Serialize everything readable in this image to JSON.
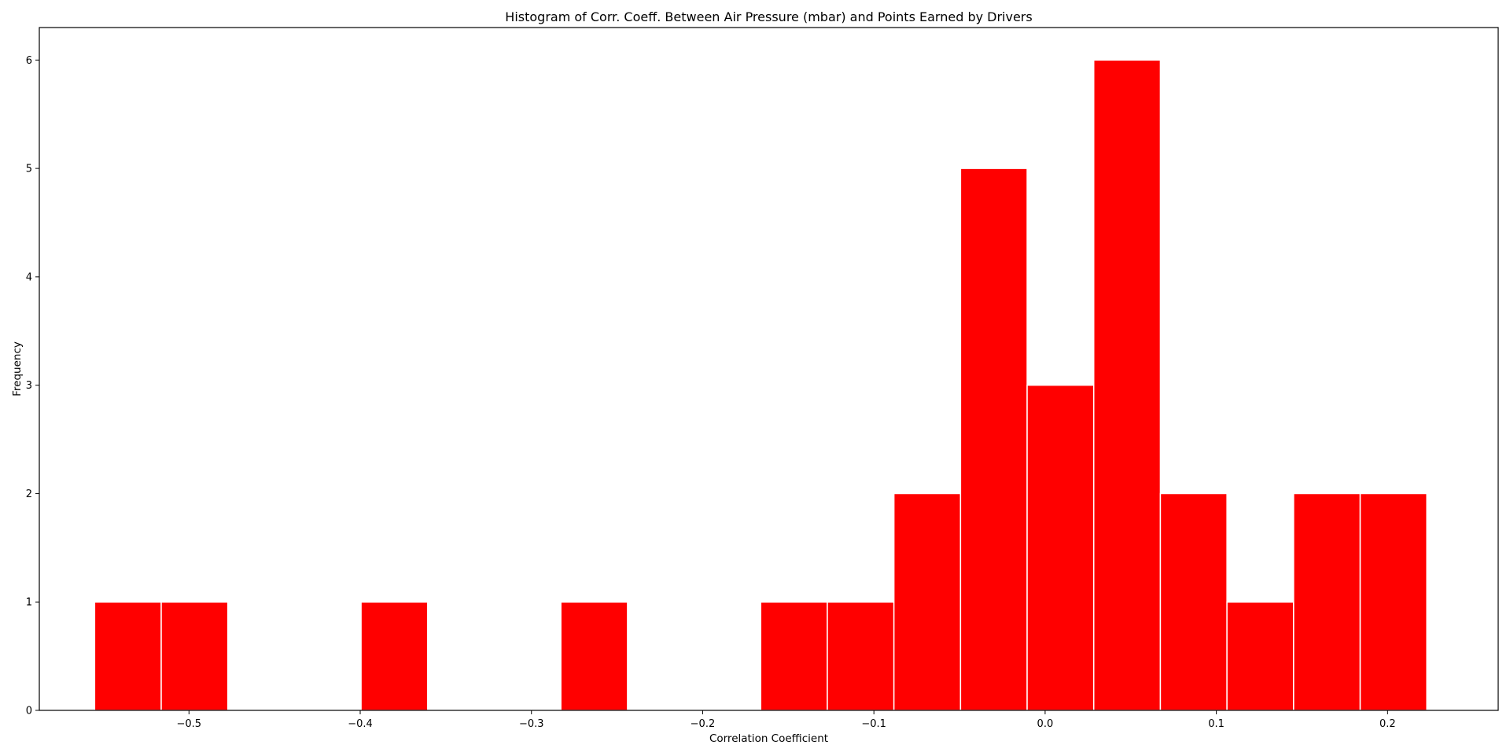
{
  "chart_data": {
    "type": "bar",
    "title": "Histogram of Corr. Coeff. Between Air Pressure (mbar) and Points Earned by Drivers",
    "xlabel": "Correlation Coefficient",
    "ylabel": "Frequency",
    "bar_color": "#ff0000",
    "edge_color": "#ffffff",
    "grid": false,
    "xlim": [
      -0.5874,
      0.2646
    ],
    "ylim": [
      0,
      6.3
    ],
    "bin_edges": [
      -0.5551,
      -0.5162,
      -0.4773,
      -0.4384,
      -0.3995,
      -0.3606,
      -0.3217,
      -0.2828,
      -0.2439,
      -0.205,
      -0.1661,
      -0.1272,
      -0.0883,
      -0.0494,
      -0.0105,
      0.0284,
      0.0673,
      0.1062,
      0.1451,
      0.184,
      0.2229
    ],
    "counts": [
      1,
      1,
      0,
      0,
      1,
      0,
      0,
      1,
      0,
      0,
      1,
      1,
      2,
      5,
      3,
      6,
      2,
      1,
      2,
      2
    ],
    "xticks": [
      {
        "value": -0.5,
        "label": "−0.5"
      },
      {
        "value": -0.4,
        "label": "−0.4"
      },
      {
        "value": -0.3,
        "label": "−0.3"
      },
      {
        "value": -0.2,
        "label": "−0.2"
      },
      {
        "value": -0.1,
        "label": "−0.1"
      },
      {
        "value": 0.0,
        "label": "0.0"
      },
      {
        "value": 0.1,
        "label": "0.1"
      },
      {
        "value": 0.2,
        "label": "0.2"
      }
    ],
    "yticks": [
      {
        "value": 0,
        "label": "0"
      },
      {
        "value": 1,
        "label": "1"
      },
      {
        "value": 2,
        "label": "2"
      },
      {
        "value": 3,
        "label": "3"
      },
      {
        "value": 4,
        "label": "4"
      },
      {
        "value": 5,
        "label": "5"
      },
      {
        "value": 6,
        "label": "6"
      }
    ]
  }
}
